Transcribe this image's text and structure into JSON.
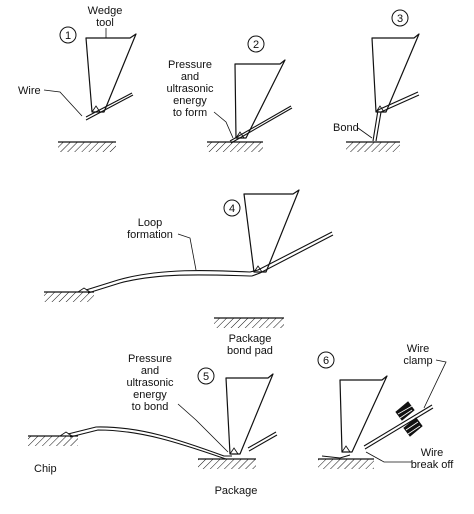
{
  "steps": [
    "1",
    "2",
    "3",
    "4",
    "5",
    "6"
  ],
  "labels": {
    "wedge_tool": [
      "Wedge",
      "tool"
    ],
    "wire": "Wire",
    "pressure_form": [
      "Pressure",
      "and",
      "ultrasonic",
      "energy",
      "to form"
    ],
    "bond": "Bond",
    "loop_formation": [
      "Loop",
      "formation"
    ],
    "package_bond_pad": [
      "Package",
      "bond pad"
    ],
    "pressure_bond": [
      "Pressure",
      "and",
      "ultrasonic",
      "energy",
      "to bond"
    ],
    "chip": "Chip",
    "package": "Package",
    "wire_clamp": [
      "Wire",
      "clamp"
    ],
    "wire_break_off": [
      "Wire",
      "break off"
    ]
  }
}
